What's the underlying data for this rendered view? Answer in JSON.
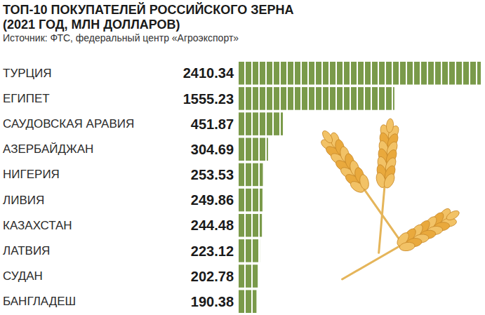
{
  "chart_data": {
    "type": "bar",
    "orientation": "horizontal",
    "title": "ТОП-10 ПОКУПАТЕЛЕЙ РОССИЙСКОГО ЗЕРНА (2021 ГОД, МЛН ДОЛЛАРОВ)",
    "subtitle": "Источник: ФТС, федеральный центр «Агроэкспорт»",
    "categories": [
      "ТУРЦИЯ",
      "ЕГИПЕТ",
      "САУДОВСКАЯ АРАВИЯ",
      "АЗЕРБАЙДЖАН",
      "НИГЕРИЯ",
      "ЛИВИЯ",
      "КАЗАХСТАН",
      "ЛАТВИЯ",
      "СУДАН",
      "БАНГЛАДЕШ"
    ],
    "values": [
      2410.34,
      1555.23,
      451.87,
      304.69,
      253.53,
      249.86,
      244.48,
      223.12,
      202.78,
      190.38
    ],
    "color": "#7a9a4a",
    "xlim": [
      0,
      2410.34
    ],
    "grid": false,
    "data_labels": true,
    "tick_labels": "y"
  }
}
